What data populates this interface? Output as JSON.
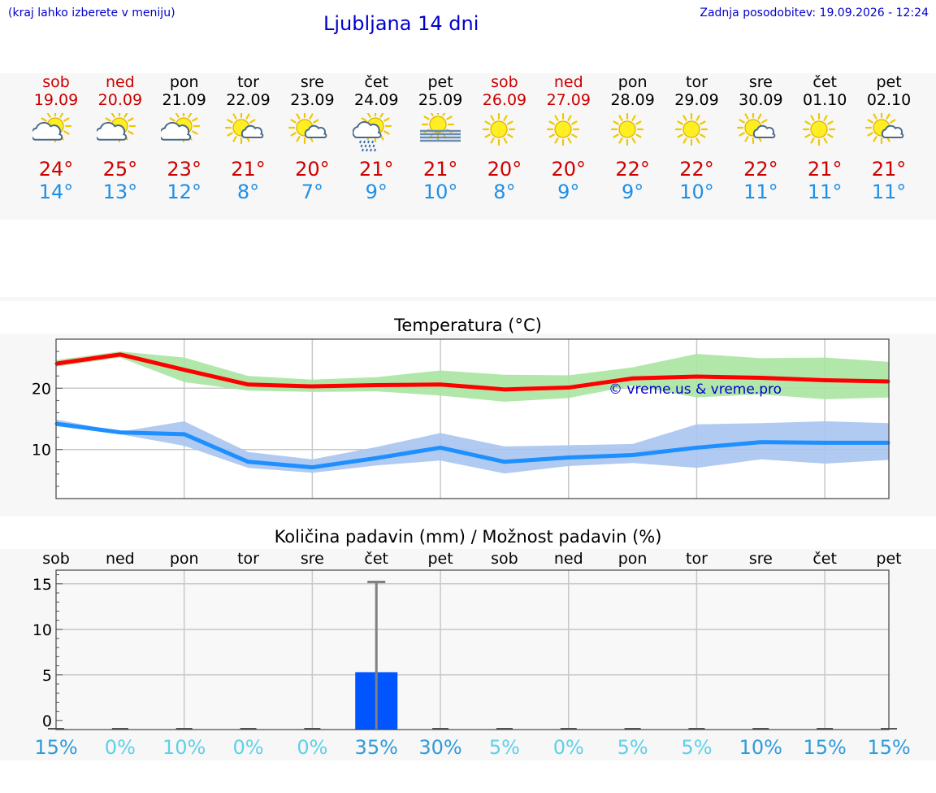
{
  "header": {
    "note": "(kraj lahko izberete v meniju)",
    "title": "Ljubljana 14 dni",
    "updated": "Zadnja posodobitev: 19.09.2026 - 12:24"
  },
  "colors": {
    "weekend": "#cc0000",
    "max_temp": "#cc0000",
    "min_temp": "#1e8fe6",
    "max_line": "#ff0000",
    "max_band": "#a8e4a0",
    "min_line": "#1e8fff",
    "min_band": "#a9c4f0",
    "rain_bar": "#0055ff"
  },
  "days": [
    {
      "name": "sob",
      "date": "19.09",
      "weekend": true,
      "icon": "partly-cloudy-icon",
      "max": "24°",
      "min": "14°"
    },
    {
      "name": "ned",
      "date": "20.09",
      "weekend": true,
      "icon": "partly-cloudy-icon",
      "max": "25°",
      "min": "13°"
    },
    {
      "name": "pon",
      "date": "21.09",
      "weekend": false,
      "icon": "partly-cloudy-icon",
      "max": "23°",
      "min": "12°"
    },
    {
      "name": "tor",
      "date": "22.09",
      "weekend": false,
      "icon": "sun-small-cloud-icon",
      "max": "21°",
      "min": "8°"
    },
    {
      "name": "sre",
      "date": "23.09",
      "weekend": false,
      "icon": "sun-small-cloud-icon",
      "max": "20°",
      "min": "7°"
    },
    {
      "name": "čet",
      "date": "24.09",
      "weekend": false,
      "icon": "sun-rain-icon",
      "max": "21°",
      "min": "9°"
    },
    {
      "name": "pet",
      "date": "25.09",
      "weekend": false,
      "icon": "sun-fog-icon",
      "max": "21°",
      "min": "10°"
    },
    {
      "name": "sob",
      "date": "26.09",
      "weekend": true,
      "icon": "sun-icon",
      "max": "20°",
      "min": "8°"
    },
    {
      "name": "ned",
      "date": "27.09",
      "weekend": true,
      "icon": "sun-icon",
      "max": "20°",
      "min": "9°"
    },
    {
      "name": "pon",
      "date": "28.09",
      "weekend": false,
      "icon": "sun-icon",
      "max": "22°",
      "min": "9°"
    },
    {
      "name": "tor",
      "date": "29.09",
      "weekend": false,
      "icon": "sun-icon",
      "max": "22°",
      "min": "10°"
    },
    {
      "name": "sre",
      "date": "30.09",
      "weekend": false,
      "icon": "sun-small-cloud-icon",
      "max": "22°",
      "min": "11°"
    },
    {
      "name": "čet",
      "date": "01.10",
      "weekend": false,
      "icon": "sun-icon",
      "max": "21°",
      "min": "11°"
    },
    {
      "name": "pet",
      "date": "02.10",
      "weekend": false,
      "icon": "sun-small-cloud-icon",
      "max": "21°",
      "min": "11°"
    }
  ],
  "chart_data": [
    {
      "type": "line",
      "title": "Temperatura (°C)",
      "watermark": "© vreme.us & vreme.pro",
      "x": [
        "sob",
        "ned",
        "pon",
        "tor",
        "sre",
        "čet",
        "pet",
        "sob",
        "ned",
        "pon",
        "tor",
        "sre",
        "čet",
        "pet"
      ],
      "ylim": [
        2,
        28
      ],
      "yticks": [
        10,
        20
      ],
      "grid": true,
      "series": [
        {
          "values": [
            24.0,
            25.5,
            23.0,
            20.6,
            20.3,
            20.5,
            20.6,
            19.8,
            20.1,
            21.6,
            21.9,
            21.7,
            21.3,
            21.1
          ],
          "band_low": [
            23.5,
            25.0,
            21.0,
            19.6,
            19.4,
            19.5,
            18.8,
            17.8,
            18.4,
            20.4,
            18.5,
            19.0,
            18.2,
            18.5
          ],
          "band_high": [
            24.6,
            26.0,
            25.0,
            22.0,
            21.4,
            21.8,
            22.9,
            22.2,
            22.1,
            23.4,
            25.6,
            24.9,
            25.0,
            24.3
          ]
        },
        {
          "values": [
            14.2,
            12.8,
            12.5,
            8.0,
            7.1,
            8.6,
            10.3,
            8.0,
            8.7,
            9.1,
            10.3,
            11.2,
            11.1,
            11.1
          ],
          "band_low": [
            13.8,
            12.5,
            10.6,
            7.0,
            6.2,
            7.4,
            8.2,
            6.1,
            7.3,
            7.8,
            7.0,
            8.4,
            7.7,
            8.3
          ],
          "band_high": [
            14.9,
            12.9,
            14.6,
            9.6,
            8.4,
            10.4,
            12.7,
            10.5,
            10.7,
            10.9,
            14.1,
            14.3,
            14.6,
            14.3
          ]
        }
      ]
    },
    {
      "type": "bar",
      "title": "Količina padavin (mm) / Možnost padavin (%)",
      "categories": [
        "sob",
        "ned",
        "pon",
        "tor",
        "sre",
        "čet",
        "pet",
        "sob",
        "ned",
        "pon",
        "tor",
        "sre",
        "čet",
        "pet"
      ],
      "ylim": [
        -1,
        16.5
      ],
      "yticks": [
        0,
        5,
        10,
        15
      ],
      "grid": true,
      "values": [
        0,
        0,
        0,
        0,
        0,
        5.3,
        0,
        0,
        0,
        0,
        0,
        0,
        0,
        0
      ],
      "error_high": [
        0,
        0,
        0,
        0,
        0,
        15.2,
        0,
        0,
        0,
        0,
        0,
        0,
        0,
        0
      ],
      "chance_labels": [
        "15%",
        "0%",
        "10%",
        "0%",
        "0%",
        "35%",
        "30%",
        "5%",
        "0%",
        "5%",
        "5%",
        "10%",
        "15%",
        "15%"
      ],
      "chance_colors": [
        "#2e9bd8",
        "#5fd0e6",
        "#5fd0e6",
        "#5fd0e6",
        "#5fd0e6",
        "#2e9bd8",
        "#2e9bd8",
        "#5fd0e6",
        "#5fd0e6",
        "#5fd0e6",
        "#5fd0e6",
        "#2e9bd8",
        "#2e9bd8",
        "#2e9bd8"
      ]
    }
  ]
}
